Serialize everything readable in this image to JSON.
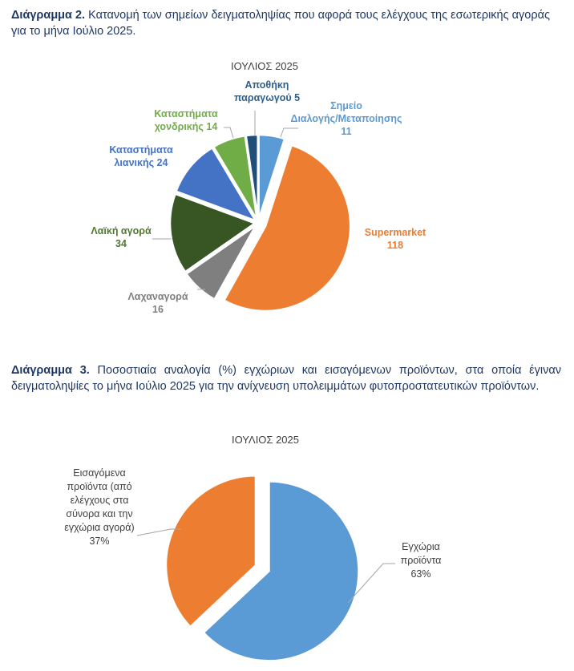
{
  "caption1": {
    "label": "Διάγραμμα 2.",
    "text": " Κατανομή των σημείων δειγματοληψίας που αφορά τους ελέγχους της εσωτερικής αγοράς για το μήνα Ιούλιο 2025."
  },
  "caption2": {
    "label": "Διάγραμμα 3.",
    "text": " Ποσοστιαία αναλογία (%) εγχώριων και εισαγόμενων προϊόντων, στα οποία έγιναν δειγματοληψίες το μήνα Ιούλιο 2025 για την ανίχνευση υπολειμμάτων φυτοπροστατευτικών προϊόντων."
  },
  "chart_data": [
    {
      "type": "pie",
      "title": "ΙΟΥΛΙΟΣ 2025",
      "start_angle_deg": 0,
      "slices": [
        {
          "name": "Σημείο Διαλογής/Μεταποίησης",
          "value": 11,
          "color": "#5b9bd5",
          "label_lines": [
            "Σημείο",
            "Διαλογής/Μεταποίησης",
            "11"
          ]
        },
        {
          "name": "Supermarket",
          "value": 118,
          "color": "#ed7d31",
          "label_lines": [
            "Supermarket",
            "118"
          ]
        },
        {
          "name": "Λαχαναγορά",
          "value": 16,
          "color": "#7f7f7f",
          "label_lines": [
            "Λαχαναγορά",
            "16"
          ]
        },
        {
          "name": "Λαϊκή αγορά",
          "value": 34,
          "color": "#375623",
          "label_lines": [
            "Λαϊκή αγορά",
            "34"
          ]
        },
        {
          "name": "Καταστήματα λιανικής",
          "value": 24,
          "color": "#4472c4",
          "label_lines": [
            "Καταστήματα",
            "λιανικής 24"
          ]
        },
        {
          "name": "Καταστήματα χονδρικής",
          "value": 14,
          "color": "#70ad47",
          "label_lines": [
            "Καταστήματα",
            "χονδρικής 14"
          ]
        },
        {
          "name": "Αποθήκη παραγωγού",
          "value": 5,
          "color": "#1f4e79",
          "label_lines": [
            "Αποθήκη",
            "παραγωγού 5"
          ]
        }
      ]
    },
    {
      "type": "pie",
      "title": "ΙΟΥΛΙΟΣ 2025",
      "start_angle_deg": 0,
      "slices": [
        {
          "name": "Εγχώρια προϊόντα",
          "value": 63,
          "color": "#5b9bd5",
          "label_lines": [
            "Εγχώρια",
            "προϊόντα",
            "63%"
          ]
        },
        {
          "name": "Εισαγόμενα προϊόντα (από ελέγχους στα σύνορα και την εγχώρια αγορά)",
          "value": 37,
          "color": "#ed7d31",
          "label_lines": [
            "Εισαγόμενα",
            "προϊόντα (από",
            "ελέγχους στα",
            "σύνορα και την",
            "εγχώρια αγορά)",
            "37%"
          ]
        }
      ]
    }
  ]
}
